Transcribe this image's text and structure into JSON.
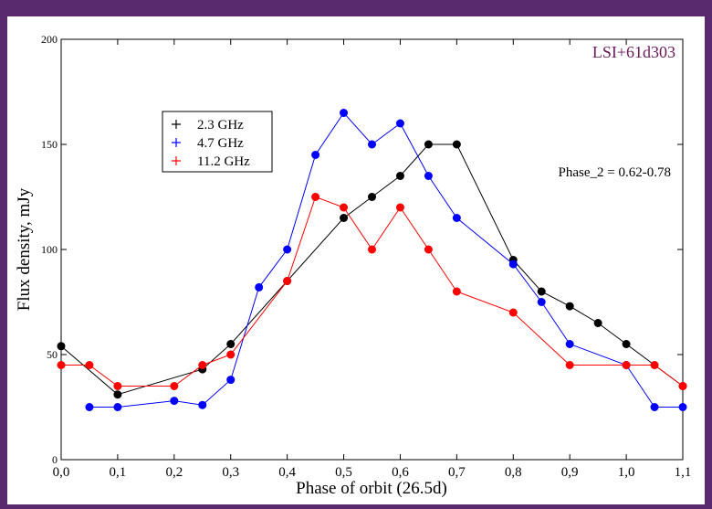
{
  "chart_data": {
    "type": "line",
    "title": "LSI+61d303",
    "annotation": "Phase_2 = 0.62-0.78",
    "x_label": "Phase of orbit  (26.5d)",
    "y_label": "Flux density, mJy",
    "xlim": [
      0,
      1.1
    ],
    "ylim": [
      0,
      200
    ],
    "xticks": [
      {
        "value": 0,
        "label": "0,0"
      },
      {
        "value": 0.1,
        "label": "0,1"
      },
      {
        "value": 0.2,
        "label": "0,2"
      },
      {
        "value": 0.3,
        "label": "0,3"
      },
      {
        "value": 0.4,
        "label": "0,4"
      },
      {
        "value": 0.5,
        "label": "0,5"
      },
      {
        "value": 0.6,
        "label": "0,6"
      },
      {
        "value": 0.7,
        "label": "0,7"
      },
      {
        "value": 0.8,
        "label": "0,8"
      },
      {
        "value": 0.9,
        "label": "0,9"
      },
      {
        "value": 1.0,
        "label": "1,0"
      },
      {
        "value": 1.1,
        "label": "1,1"
      }
    ],
    "yticks": [
      0,
      50,
      100,
      150,
      200
    ],
    "legend": "upper left",
    "series": [
      {
        "name": "2.3 GHz",
        "color": "#000000",
        "x": [
          0,
          0.1,
          0.25,
          0.3,
          0.4,
          0.5,
          0.55,
          0.6,
          0.65,
          0.7,
          0.8,
          0.85,
          0.9,
          0.95,
          1.0,
          1.1
        ],
        "values": [
          54,
          31,
          43,
          55,
          85,
          115,
          125,
          135,
          150,
          150,
          95,
          80,
          73,
          65,
          55,
          35
        ]
      },
      {
        "name": "4.7 GHz",
        "color": "#0000ff",
        "x": [
          0.05,
          0.1,
          0.2,
          0.25,
          0.3,
          0.35,
          0.4,
          0.45,
          0.5,
          0.55,
          0.6,
          0.65,
          0.7,
          0.8,
          0.85,
          0.9,
          1.0,
          1.05,
          1.1
        ],
        "values": [
          25,
          25,
          28,
          26,
          38,
          82,
          100,
          145,
          165,
          150,
          160,
          135,
          115,
          93,
          75,
          55,
          45,
          25,
          25
        ]
      },
      {
        "name": "11.2 GHz",
        "color": "#ff0000",
        "x": [
          0,
          0.05,
          0.1,
          0.2,
          0.25,
          0.3,
          0.4,
          0.45,
          0.5,
          0.55,
          0.6,
          0.65,
          0.7,
          0.8,
          0.9,
          1.0,
          1.05,
          1.1
        ],
        "values": [
          45,
          45,
          35,
          35,
          45,
          50,
          85,
          125,
          120,
          100,
          120,
          100,
          80,
          70,
          45,
          45,
          45,
          35
        ]
      }
    ]
  }
}
